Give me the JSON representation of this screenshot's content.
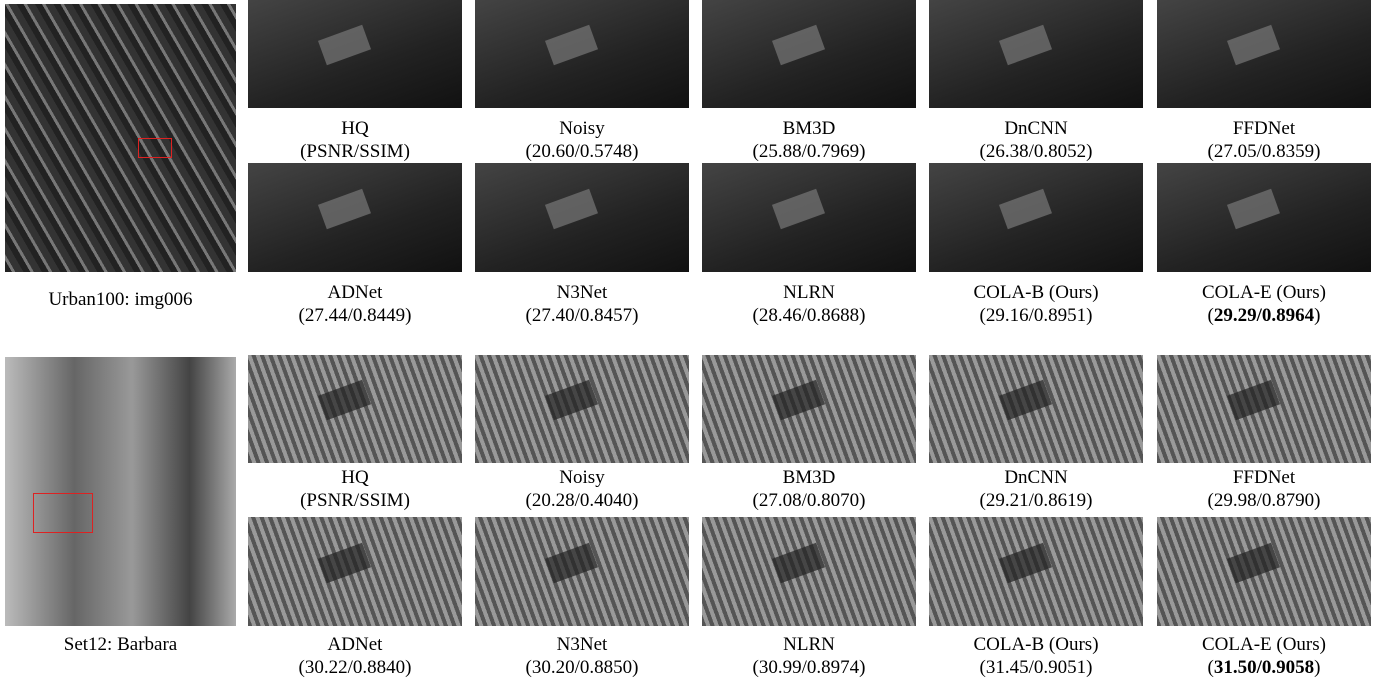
{
  "groups": [
    {
      "caption": "Urban100: img006",
      "items": [
        {
          "method": "HQ",
          "score": "(PSNR/SSIM)"
        },
        {
          "method": "Noisy",
          "score": "(20.60/0.5748)"
        },
        {
          "method": "BM3D",
          "score": "(25.88/0.7969)"
        },
        {
          "method": "DnCNN",
          "score": "(26.38/0.8052)"
        },
        {
          "method": "FFDNet",
          "score": "(27.05/0.8359)"
        },
        {
          "method": "ADNet",
          "score": "(27.44/0.8449)"
        },
        {
          "method": "N3Net",
          "score": "(27.40/0.8457)"
        },
        {
          "method": "NLRN",
          "score": "(28.46/0.8688)"
        },
        {
          "method": "COLA-B (Ours)",
          "score": "(29.16/0.8951)"
        },
        {
          "method": "COLA-E (Ours)",
          "score": [
            "(",
            "29.29/0.8964",
            ")"
          ]
        }
      ]
    },
    {
      "caption": "Set12: Barbara",
      "items": [
        {
          "method": "HQ",
          "score": "(PSNR/SSIM)"
        },
        {
          "method": "Noisy",
          "score": "(20.28/0.4040)"
        },
        {
          "method": "BM3D",
          "score": "(27.08/0.8070)"
        },
        {
          "method": "DnCNN",
          "score": "(29.21/0.8619)"
        },
        {
          "method": "FFDNet",
          "score": "(29.98/0.8790)"
        },
        {
          "method": "ADNet",
          "score": "(30.22/0.8840)"
        },
        {
          "method": "N3Net",
          "score": "(30.20/0.8850)"
        },
        {
          "method": "NLRN",
          "score": "(30.99/0.8974)"
        },
        {
          "method": "COLA-B (Ours)",
          "score": "(31.45/0.9051)"
        },
        {
          "method": "COLA-E (Ours)",
          "score": [
            "(",
            "31.50/0.9058",
            ")"
          ]
        }
      ]
    }
  ]
}
